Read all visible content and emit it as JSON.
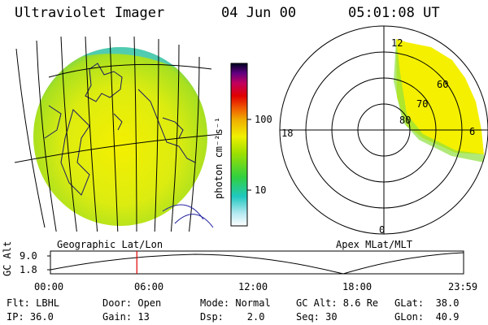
{
  "header": {
    "instrument": "Ultraviolet Imager",
    "date": "04 Jun 00",
    "time": "05:01:08 UT"
  },
  "colorbar": {
    "unit_label": "photon cm⁻²s⁻¹",
    "scale": "log",
    "ticks": [
      "100",
      "10"
    ]
  },
  "polar": {
    "label": "Apex MLat/MLT",
    "mlt_labels": {
      "top": "12",
      "left": "18",
      "bottom": "0",
      "right": "6"
    },
    "mlat_labels": [
      "60",
      "70",
      "80"
    ]
  },
  "map": {
    "label": "Geographic Lat/Lon"
  },
  "altitude": {
    "axis_label": "GC Alt",
    "y_ticks": [
      "9.0",
      "1.8"
    ],
    "x_ticks": [
      "00:00",
      "06:00",
      "12:00",
      "18:00",
      "23:59"
    ],
    "current_marker_hours": 5.02
  },
  "status": {
    "filter": "Flt: LBHL",
    "door": "Door: Open",
    "mode": "Mode: Normal",
    "gc_alt": "GC Alt: 8.6 Re",
    "glat": "GLat:  38.0",
    "ip": "IP: 36.0",
    "gain": "Gain: 13",
    "dsp": "Dsp:    2.0",
    "seq": "Seq: 30",
    "glon": "GLon:  40.9"
  },
  "colors": {
    "glow_yellow": "#f4f000",
    "glow_green": "#a8e020",
    "glow_cyan": "#30c8d8",
    "marker": "#e00000"
  }
}
